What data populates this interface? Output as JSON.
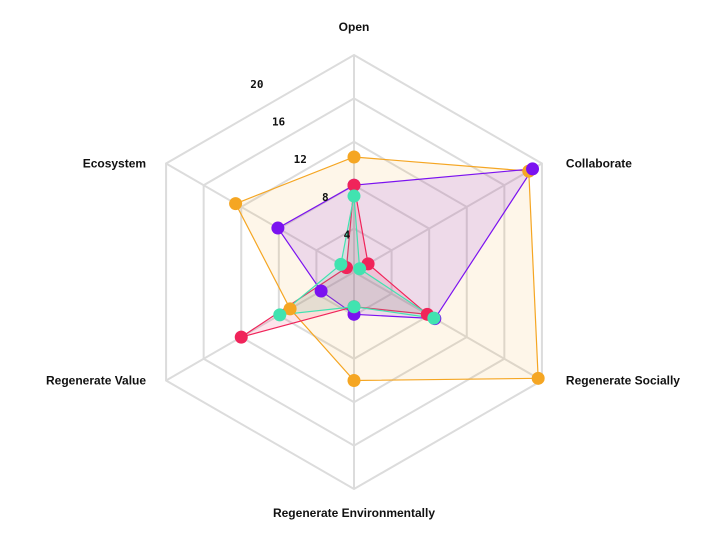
{
  "chart_data": {
    "type": "radar",
    "axes": [
      "Open",
      "Collaborate",
      "Regenerate Socially",
      "Regenerate Environmentally",
      "Regenerate Value",
      "Ecosystem"
    ],
    "ticks": [
      4,
      8,
      12,
      16,
      20
    ],
    "rmax": 20,
    "grid": true,
    "legend": "none",
    "series": [
      {
        "color": "#F5A623",
        "fill": "rgba(245,166,35,0.10)",
        "values": [
          10.6,
          18.6,
          19.6,
          10.0,
          6.8,
          12.6
        ]
      },
      {
        "color": "#7B12F0",
        "fill": "rgba(123,18,240,0.12)",
        "values": [
          8.0,
          19.0,
          8.6,
          3.9,
          3.5,
          8.1
        ]
      },
      {
        "color": "#F0245A",
        "fill": "rgba(240,36,90,0.12)",
        "values": [
          8.0,
          1.5,
          7.8,
          3.2,
          12.0,
          0.8
        ]
      },
      {
        "color": "#41E3B0",
        "fill": "rgba(65,227,176,0.12)",
        "values": [
          7.0,
          0.6,
          8.5,
          3.2,
          7.9,
          1.4
        ]
      }
    ]
  }
}
